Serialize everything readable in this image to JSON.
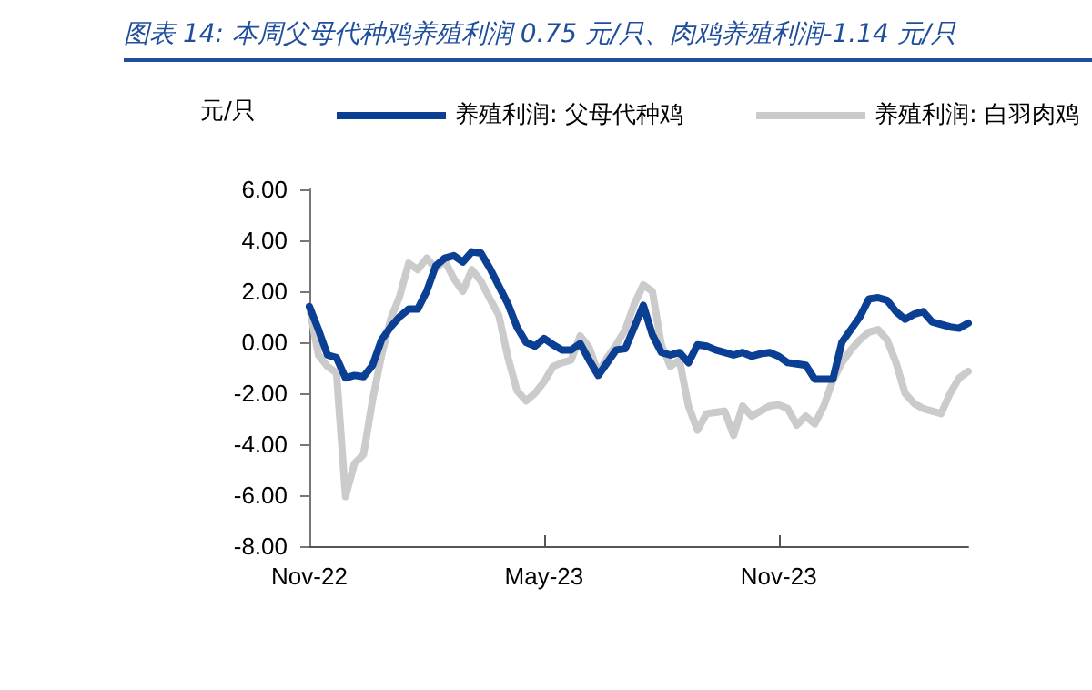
{
  "chart_data": {
    "type": "line",
    "title": "图表 14:  本周父母代种鸡养殖利润 0.75 元/只、肉鸡养殖利润-1.14 元/只",
    "ylabel": "元/只",
    "categories": [
      "Nov-22",
      null,
      null,
      null,
      null,
      null,
      null,
      null,
      null,
      null,
      null,
      null,
      null,
      null,
      null,
      null,
      null,
      null,
      null,
      null,
      null,
      null,
      null,
      null,
      null,
      null,
      "May-23",
      null,
      null,
      null,
      null,
      null,
      null,
      null,
      null,
      null,
      null,
      null,
      null,
      null,
      null,
      null,
      null,
      null,
      null,
      null,
      null,
      null,
      null,
      null,
      null,
      null,
      "Nov-23",
      null,
      null,
      null,
      null,
      null,
      null,
      null,
      null,
      null,
      null,
      null,
      null,
      null,
      null,
      null,
      null,
      null,
      null,
      null,
      null,
      null
    ],
    "series": [
      {
        "name": "养殖利润: 父母代种鸡",
        "color": "#0b3f94",
        "values": [
          1.4,
          0.5,
          -0.5,
          -0.6,
          -1.4,
          -1.3,
          -1.35,
          -0.9,
          0.1,
          0.6,
          1.0,
          1.3,
          1.3,
          2.0,
          3.0,
          3.3,
          3.4,
          3.15,
          3.55,
          3.5,
          2.9,
          2.2,
          1.5,
          0.6,
          0.0,
          -0.15,
          0.15,
          -0.1,
          -0.3,
          -0.3,
          -0.05,
          -0.7,
          -1.3,
          -0.8,
          -0.3,
          -0.25,
          0.6,
          1.45,
          0.3,
          -0.4,
          -0.5,
          -0.4,
          -0.8,
          -0.1,
          -0.15,
          -0.3,
          -0.4,
          -0.5,
          -0.4,
          -0.55,
          -0.45,
          -0.4,
          -0.55,
          -0.8,
          -0.85,
          -0.9,
          -1.45,
          -1.45,
          -1.45,
          0.0,
          0.5,
          1.0,
          1.7,
          1.75,
          1.65,
          1.2,
          0.9,
          1.1,
          1.2,
          0.8,
          0.7,
          0.6,
          0.55,
          0.75
        ]
      },
      {
        "name": "养殖利润: 白羽肉鸡",
        "color": "#cbcbcb",
        "values": [
          1.4,
          -0.5,
          -0.95,
          -1.2,
          -6.05,
          -4.75,
          -4.4,
          -2.25,
          -0.5,
          0.9,
          1.8,
          3.1,
          2.85,
          3.3,
          2.9,
          3.2,
          2.5,
          2.0,
          2.85,
          2.4,
          1.7,
          1.05,
          -0.6,
          -1.9,
          -2.3,
          -2.0,
          -1.55,
          -0.95,
          -0.8,
          -0.7,
          0.25,
          -0.2,
          -1.2,
          -0.6,
          -0.1,
          0.5,
          1.5,
          2.25,
          2.0,
          -0.1,
          -0.95,
          -0.7,
          -2.5,
          -3.45,
          -2.8,
          -2.75,
          -2.7,
          -3.65,
          -2.5,
          -2.9,
          -2.7,
          -2.5,
          -2.45,
          -2.6,
          -3.25,
          -2.9,
          -3.2,
          -2.5,
          -1.5,
          -0.8,
          -0.3,
          0.1,
          0.4,
          0.5,
          0.1,
          -0.8,
          -2.0,
          -2.4,
          -2.6,
          -2.7,
          -2.8,
          -2.0,
          -1.4,
          -1.14
        ]
      }
    ],
    "ylim": [
      -8,
      6
    ],
    "yticks": [
      {
        "value": -8,
        "label": "-8.00"
      },
      {
        "value": -6,
        "label": "-6.00"
      },
      {
        "value": -4,
        "label": "-4.00"
      },
      {
        "value": -2,
        "label": "-2.00"
      },
      {
        "value": 0,
        "label": "0.00"
      },
      {
        "value": 2,
        "label": "2.00"
      },
      {
        "value": 4,
        "label": "4.00"
      },
      {
        "value": 6,
        "label": "6.00"
      }
    ],
    "grid": false,
    "legend": "top",
    "marker": "none",
    "line_style": "solid"
  }
}
